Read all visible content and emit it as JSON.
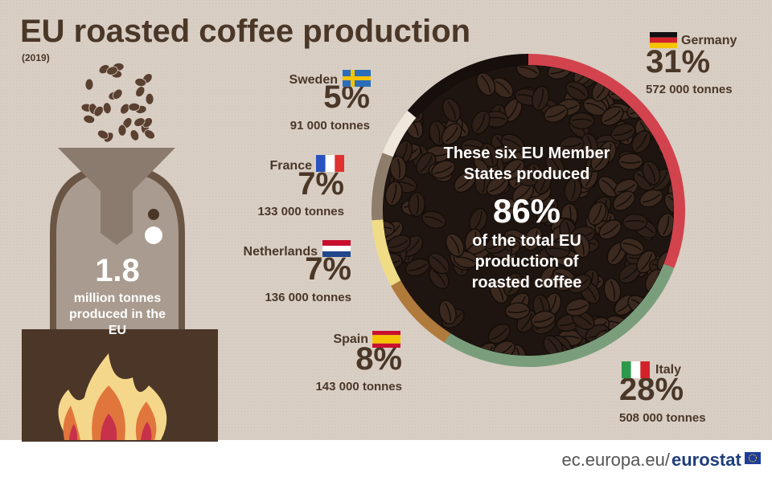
{
  "chart_data": {
    "type": "donut",
    "title": "EU roasted coffee production",
    "subtitle": "(2019)",
    "categories": [
      "Germany",
      "Italy",
      "Spain",
      "Netherlands",
      "France",
      "Sweden",
      null
    ],
    "values": [
      31,
      28,
      8,
      7,
      7,
      5,
      14
    ],
    "value_labels": [
      "31%",
      "28%",
      "8%",
      "7%",
      "7%",
      "5%",
      null
    ],
    "tonnes_labels": [
      "572 000 tonnes",
      "508 000 tonnes",
      "143 000 tonnes",
      "136 000 tonnes",
      "133 000 tonnes",
      "91 000 tonnes",
      null
    ],
    "colors": [
      "#d2434d",
      "#7a9e7b",
      "#b07a3c",
      "#f0dc86",
      "#8f7d6c",
      "#efe6dc",
      "#160f0b"
    ],
    "center_text": {
      "top": "These six EU Member States produced",
      "value": "86%",
      "bottom": "of the total EU production of roasted coffee"
    },
    "total": {
      "value": "1.8",
      "text": "million tonnes produced in the EU"
    },
    "footer": {
      "site": "ec.europa.eu/",
      "brand": "eurostat"
    }
  }
}
